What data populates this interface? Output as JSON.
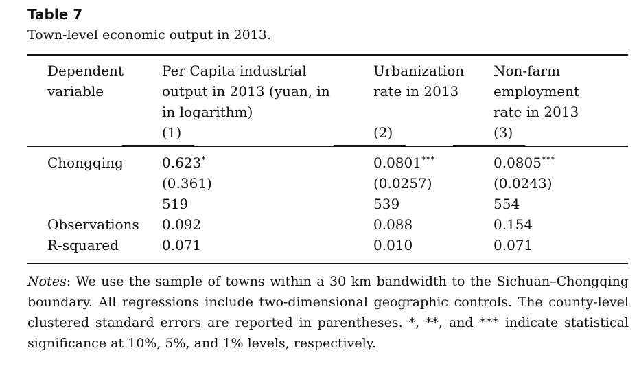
{
  "caption": {
    "number": "Table 7",
    "title": "Town-level economic output in 2013."
  },
  "header": {
    "col0": "Dependent\nvariable",
    "col1": "Per Capita industrial\noutput in 2013 (yuan, in\nin logarithm)",
    "col1_num": "(1)",
    "col2": "Urbanization\nrate in 2013",
    "col2_num": "(2)",
    "col3": "Non-farm\nemployment\nrate in 2013",
    "col3_num": "(3)"
  },
  "rows": {
    "chongqing": {
      "label": "Chongqing",
      "c1": "0.623",
      "c1_sig": "*",
      "c2": "0.0801",
      "c2_sig": "***",
      "c3": "0.0805",
      "c3_sig": "***"
    },
    "se": {
      "c1": "(0.361)",
      "c2": "(0.0257)",
      "c3": "(0.0243)"
    },
    "unlabeled": {
      "c1": "519",
      "c2": "539",
      "c3": "554"
    },
    "observations": {
      "label": "Observations",
      "c1": "0.092",
      "c2": "0.088",
      "c3": "0.154"
    },
    "rsquared": {
      "label": "R-squared",
      "c1": "0.071",
      "c2": "0.010",
      "c3": "0.071"
    }
  },
  "notes": {
    "label": "Notes",
    "text": ": We use the sample of towns within a 30 km bandwidth to the Sichuan–Chongqing boundary. All regressions include two-dimensional geographic controls. The county-level clustered standard errors are reported in parentheses. *, **, and *** indicate statistical significance at 10%, 5%, and 1% levels, respectively."
  }
}
